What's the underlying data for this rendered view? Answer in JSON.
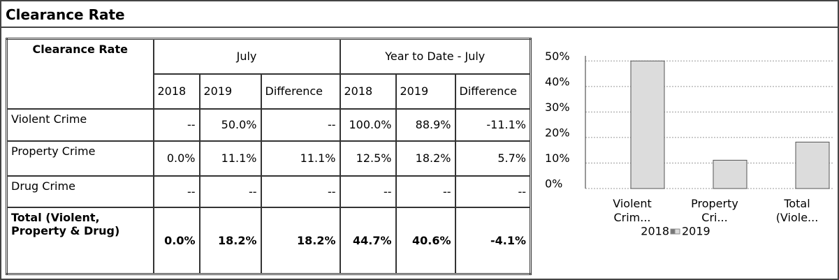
{
  "title": "Clearance Rate",
  "table": {
    "corner": "Clearance Rate",
    "groups": [
      "July",
      "Year to Date - July"
    ],
    "columns": [
      "2018",
      "2019",
      "Difference",
      "2018",
      "2019",
      "Difference"
    ],
    "rows": [
      [
        "Violent Crime",
        "--",
        "50.0%",
        "--",
        "100.0%",
        "88.9%",
        "-11.1%"
      ],
      [
        "Property Crime",
        "0.0%",
        "11.1%",
        "11.1%",
        "12.5%",
        "18.2%",
        "5.7%"
      ],
      [
        "Drug Crime",
        "--",
        "--",
        "--",
        "--",
        "--",
        "--"
      ],
      [
        "Total (Violent, Property & Drug)",
        "0.0%",
        "18.2%",
        "18.2%",
        "44.7%",
        "40.6%",
        "-4.1%"
      ]
    ]
  },
  "chart_data": {
    "type": "bar",
    "categories": [
      "Violent Crim...",
      "Property Cri...",
      "Total (Viole..."
    ],
    "series": [
      {
        "name": "2018",
        "color": "#777777",
        "values": [
          null,
          0.0,
          0.0
        ]
      },
      {
        "name": "2019",
        "color": "#dcdcdc",
        "values": [
          50.0,
          11.1,
          18.2
        ]
      }
    ],
    "ylim": [
      0,
      52
    ],
    "yticks": [
      {
        "value": 0,
        "label": "0%"
      },
      {
        "value": 10,
        "label": "10%"
      },
      {
        "value": 20,
        "label": "20%"
      },
      {
        "value": 30,
        "label": "30%"
      },
      {
        "value": 40,
        "label": "40%"
      },
      {
        "value": 50,
        "label": "50%"
      }
    ],
    "grid": true
  }
}
